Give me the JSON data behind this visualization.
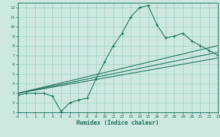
{
  "title": "",
  "xlabel": "Humidex (Indice chaleur)",
  "xlim": [
    0,
    23
  ],
  "ylim": [
    1,
    12.5
  ],
  "xticks": [
    0,
    1,
    2,
    3,
    4,
    5,
    6,
    7,
    8,
    9,
    10,
    11,
    12,
    13,
    14,
    15,
    16,
    17,
    18,
    19,
    20,
    21,
    22,
    23
  ],
  "yticks": [
    1,
    2,
    3,
    4,
    5,
    6,
    7,
    8,
    9,
    10,
    11,
    12
  ],
  "bg_color": "#cce8e0",
  "line_color": "#1a6b5a",
  "grid_color": "#9ecfc4",
  "main_curve_x": [
    0,
    1,
    2,
    3,
    4,
    5,
    6,
    7,
    8,
    9,
    10,
    11,
    12,
    13,
    14,
    15,
    16,
    17,
    18,
    19,
    20,
    21,
    22,
    23
  ],
  "main_curve_y": [
    2.8,
    3.0,
    3.0,
    3.0,
    2.7,
    1.1,
    2.0,
    2.3,
    2.5,
    4.5,
    6.3,
    8.0,
    9.3,
    11.0,
    12.0,
    12.2,
    10.2,
    8.8,
    9.0,
    9.3,
    8.5,
    8.0,
    7.5,
    7.0
  ],
  "line1_x": [
    0,
    23
  ],
  "line1_y": [
    3.0,
    7.3
  ],
  "line2_x": [
    0,
    23
  ],
  "line2_y": [
    3.0,
    8.0
  ],
  "line3_x": [
    0,
    23
  ],
  "line3_y": [
    3.0,
    6.7
  ]
}
